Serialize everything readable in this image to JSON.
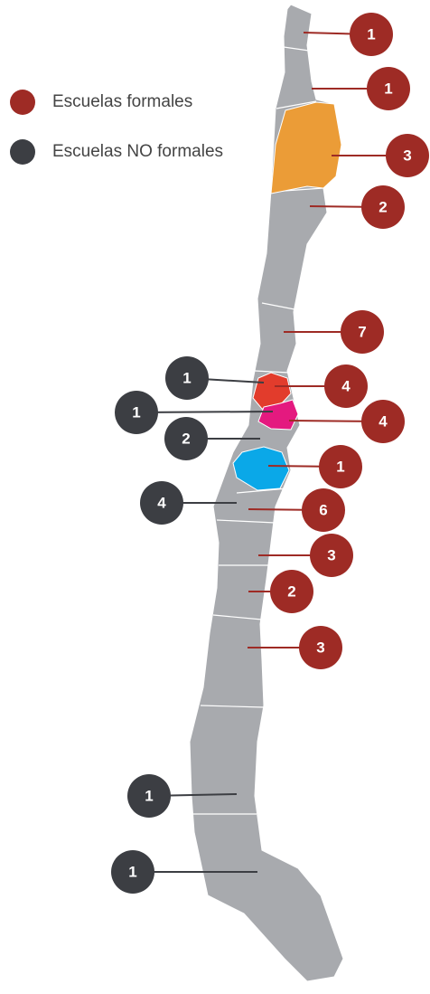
{
  "legend": [
    {
      "label": "Escuelas formales",
      "color": "#9e2b25"
    },
    {
      "label": "Escuelas NO formales",
      "color": "#3c3e43"
    }
  ],
  "markers": {
    "formales": [
      1,
      1,
      3,
      2,
      7,
      4,
      4,
      1,
      6,
      3,
      2,
      3
    ],
    "no_formales": [
      1,
      1,
      2,
      4,
      1,
      1
    ]
  }
}
